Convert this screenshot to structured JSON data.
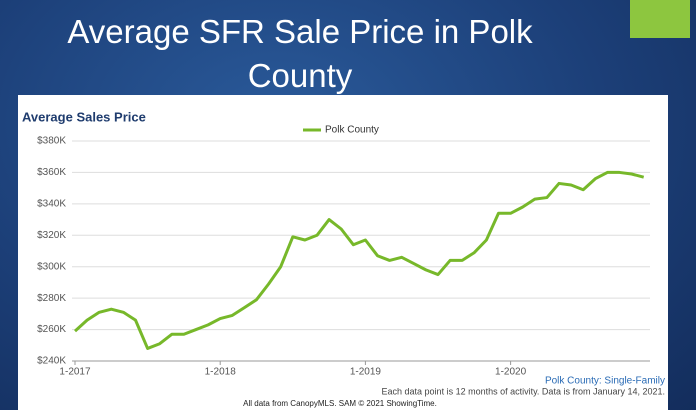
{
  "slide": {
    "title": "Average SFR Sale Price in Polk County"
  },
  "chart_data": {
    "type": "line",
    "title": "Average Sales Price",
    "categories": [
      "1-2017",
      null,
      null,
      null,
      null,
      null,
      null,
      null,
      null,
      null,
      null,
      null,
      "1-2018",
      null,
      null,
      null,
      null,
      null,
      null,
      null,
      null,
      null,
      null,
      null,
      "1-2019",
      null,
      null,
      null,
      null,
      null,
      null,
      null,
      null,
      null,
      null,
      null,
      "1-2020",
      null,
      null,
      null,
      null,
      null,
      null,
      null,
      null,
      null,
      null,
      null
    ],
    "series": [
      {
        "name": "Polk County",
        "color": "#77b82a",
        "values": [
          259,
          266,
          271,
          273,
          271,
          266,
          248,
          251,
          257,
          257,
          260,
          263,
          267,
          269,
          274,
          279,
          289,
          300,
          319,
          317,
          320,
          330,
          324,
          314,
          317,
          307,
          304,
          306,
          302,
          298,
          295,
          304,
          304,
          309,
          317,
          334,
          334,
          338,
          343,
          344,
          353,
          352,
          349,
          356,
          360,
          360,
          359,
          357
        ]
      }
    ],
    "ylim": [
      240,
      380
    ],
    "yticks": [
      {
        "value": 240,
        "label": "$240K"
      },
      {
        "value": 260,
        "label": "$260K"
      },
      {
        "value": 280,
        "label": "$280K"
      },
      {
        "value": 300,
        "label": "$300K"
      },
      {
        "value": 320,
        "label": "$320K"
      },
      {
        "value": 340,
        "label": "$340K"
      },
      {
        "value": 360,
        "label": "$360K"
      },
      {
        "value": 380,
        "label": "$380K"
      }
    ],
    "grid": true,
    "subtitle": "Polk County: Single-Family",
    "annotations": [
      "Each data point is 12 months of activity. Data is from January 14, 2021.",
      "All data from CanopyMLS. SAM © 2021 ShowingTime."
    ]
  }
}
